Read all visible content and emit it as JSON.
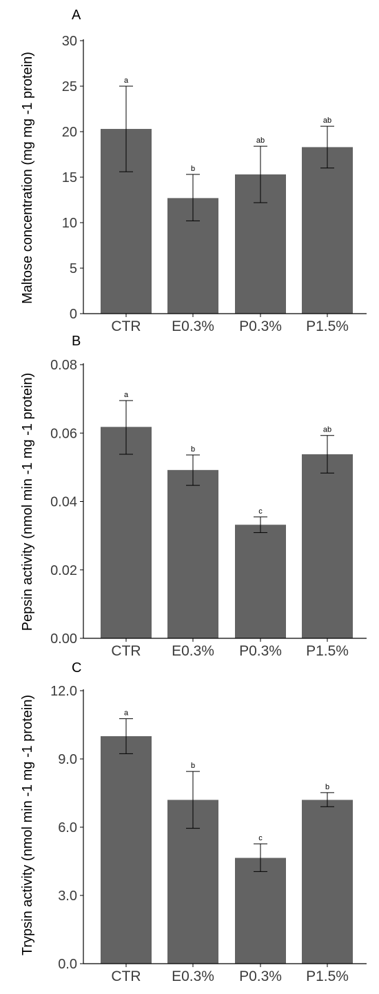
{
  "colors": {
    "bar": "#636363",
    "axis": "#000000",
    "tick_text": "#3b3b3b"
  },
  "chart_data": [
    {
      "type": "bar",
      "panel": "A",
      "title": "",
      "xlabel": "",
      "ylabel": "Maltose concentration (mg mg -1 protein)",
      "categories": [
        "CTR",
        "E0.3%",
        "P0.3%",
        "P1.5%"
      ],
      "values": [
        20.3,
        12.7,
        15.3,
        18.3
      ],
      "error_low": [
        15.6,
        10.2,
        12.2,
        16.0
      ],
      "error_high": [
        25.0,
        15.3,
        18.4,
        20.6
      ],
      "significance": [
        "a",
        "b",
        "ab",
        "ab"
      ],
      "ylim": [
        0,
        30
      ],
      "yticks": [
        0,
        5,
        10,
        15,
        20,
        25,
        30
      ],
      "ytick_labels": [
        "0",
        "5",
        "10",
        "15",
        "20",
        "25",
        "30"
      ],
      "grid": false,
      "legend": "none"
    },
    {
      "type": "bar",
      "panel": "B",
      "title": "",
      "xlabel": "",
      "ylabel": "Pepsin activity (nmol min -1 mg -1 protein)",
      "categories": [
        "CTR",
        "E0.3%",
        "P0.3%",
        "P1.5%"
      ],
      "values": [
        0.0618,
        0.0492,
        0.0332,
        0.0538
      ],
      "error_low": [
        0.0538,
        0.0447,
        0.0309,
        0.0483
      ],
      "error_high": [
        0.0695,
        0.0536,
        0.0355,
        0.0593
      ],
      "significance": [
        "a",
        "b",
        "c",
        "ab"
      ],
      "ylim": [
        0,
        0.08
      ],
      "yticks": [
        0,
        0.02,
        0.04,
        0.06,
        0.08
      ],
      "ytick_labels": [
        "0.00",
        "0.02",
        "0.04",
        "0.06",
        "0.08"
      ],
      "grid": false,
      "legend": "none"
    },
    {
      "type": "bar",
      "panel": "C",
      "title": "",
      "xlabel": "",
      "ylabel": "Trypsin activity (nmol min -1 mg -1 protein)",
      "categories": [
        "CTR",
        "E0.3%",
        "P0.3%",
        "P1.5%"
      ],
      "values": [
        10.0,
        7.2,
        4.65,
        7.2
      ],
      "error_low": [
        9.23,
        5.95,
        4.05,
        6.9
      ],
      "error_high": [
        10.77,
        8.45,
        5.27,
        7.52
      ],
      "significance": [
        "a",
        "b",
        "c",
        "b"
      ],
      "ylim": [
        0,
        12
      ],
      "yticks": [
        0,
        3,
        6,
        9,
        12
      ],
      "ytick_labels": [
        "0.0",
        "3.0",
        "6.0",
        "9.0",
        "12.0"
      ],
      "grid": false,
      "legend": "none"
    }
  ]
}
